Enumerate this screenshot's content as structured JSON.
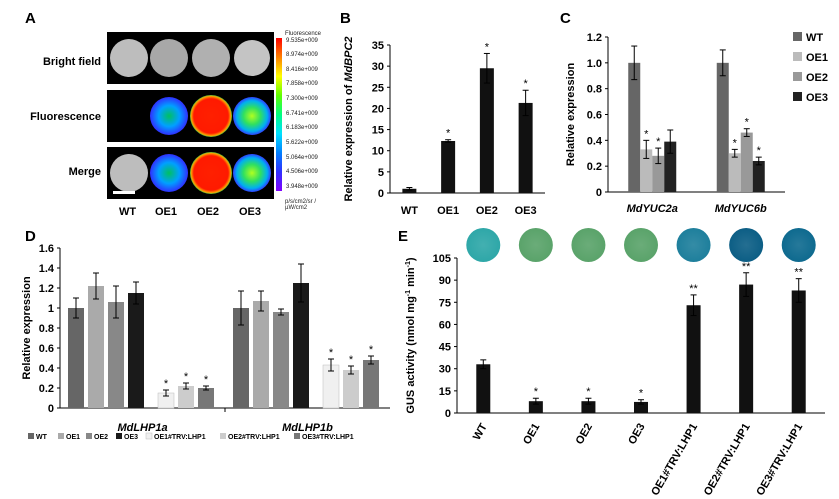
{
  "panels": {
    "A": {
      "letter": "A",
      "rows": [
        "Bright field",
        "Fluorescence",
        "Merge"
      ],
      "columns": [
        "WT",
        "OE1",
        "OE2",
        "OE3"
      ],
      "colorbar_title": "Fluorescence",
      "colorbar_ticks": [
        "9.535e+009",
        "8.974e+009",
        "8.416e+009",
        "7.858e+009",
        "7.300e+009",
        "6.741e+009",
        "6.183e+009",
        "5.622e+009",
        "5.064e+009",
        "4.506e+009",
        "3.948e+009"
      ],
      "colorbar_units": "p/s/cm2/sr / µW/cm2"
    },
    "B": {
      "letter": "B"
    },
    "C": {
      "letter": "C"
    },
    "D": {
      "letter": "D"
    },
    "E": {
      "letter": "E"
    }
  },
  "chart_data": [
    {
      "id": "B",
      "type": "bar",
      "categories": [
        "WT",
        "OE1",
        "OE2",
        "OE3"
      ],
      "values": [
        1.0,
        12.3,
        29.5,
        21.3
      ],
      "errors": [
        0.3,
        0.3,
        3.5,
        3.0
      ],
      "significance": [
        "",
        "*",
        "*",
        "*"
      ],
      "ylabel_prefix": "Relative expression of ",
      "ylabel_gene": "MdBPC2",
      "ylim": [
        0,
        35
      ],
      "yticks": [
        "0",
        "5",
        "10",
        "15",
        "20",
        "25",
        "30",
        "35"
      ],
      "bar_color": "#111111"
    },
    {
      "id": "C",
      "type": "bar",
      "groups": [
        "MdYUC2a",
        "MdYUC6b"
      ],
      "series": [
        {
          "name": "WT",
          "color": "#666666",
          "values": [
            1.0,
            1.0
          ],
          "errors": [
            0.13,
            0.1
          ],
          "significance": [
            "",
            ""
          ]
        },
        {
          "name": "OE1",
          "color": "#bbbbbb",
          "values": [
            0.33,
            0.3
          ],
          "errors": [
            0.07,
            0.03
          ],
          "significance": [
            "*",
            "*"
          ]
        },
        {
          "name": "OE2",
          "color": "#999999",
          "values": [
            0.28,
            0.46
          ],
          "errors": [
            0.06,
            0.03
          ],
          "significance": [
            "*",
            "*"
          ]
        },
        {
          "name": "OE3",
          "color": "#222222",
          "values": [
            0.39,
            0.24
          ],
          "errors": [
            0.09,
            0.03
          ],
          "significance": [
            "",
            "*"
          ]
        }
      ],
      "ylabel": "Relative expression",
      "ylim": [
        0,
        1.2
      ],
      "yticks": [
        "0",
        "0.2",
        "0.4",
        "0.6",
        "0.8",
        "1.0",
        "1.2"
      ]
    },
    {
      "id": "D",
      "type": "bar",
      "groups": [
        "MdLHP1a",
        "MdLHP1b"
      ],
      "series": [
        {
          "name": "WT",
          "color": "#666666",
          "values": [
            1.0,
            1.0
          ],
          "errors": [
            0.1,
            0.17
          ]
        },
        {
          "name": "OE1",
          "color": "#aaaaaa",
          "values": [
            1.22,
            1.07
          ],
          "errors": [
            0.13,
            0.1
          ]
        },
        {
          "name": "OE2",
          "color": "#888888",
          "values": [
            1.06,
            0.96
          ],
          "errors": [
            0.16,
            0.03
          ]
        },
        {
          "name": "OE3",
          "color": "#1a1a1a",
          "values": [
            1.15,
            1.25
          ],
          "errors": [
            0.11,
            0.19
          ]
        },
        {
          "name": "OE1#TRV:LHP1",
          "color": "#f0f0f0",
          "values": [
            0.15,
            0.43
          ],
          "errors": [
            0.03,
            0.06
          ],
          "significance": [
            "*",
            "*"
          ]
        },
        {
          "name": "OE2#TRV:LHP1",
          "color": "#cccccc",
          "values": [
            0.22,
            0.38
          ],
          "errors": [
            0.03,
            0.04
          ],
          "significance": [
            "*",
            "*"
          ]
        },
        {
          "name": "OE3#TRV:LHP1",
          "color": "#777777",
          "values": [
            0.2,
            0.48
          ],
          "errors": [
            0.02,
            0.04
          ],
          "significance": [
            "*",
            "*"
          ]
        }
      ],
      "ylabel": "Relative expression",
      "ylim": [
        0,
        1.6
      ],
      "yticks": [
        "0",
        "0.2",
        "0.4",
        "0.6",
        "0.8",
        "1",
        "1.2",
        "1.4",
        "1.6"
      ]
    },
    {
      "id": "E",
      "type": "bar",
      "categories": [
        "WT",
        "OE1",
        "OE2",
        "OE3",
        "OE1#TRV:LHP1",
        "OE2#TRV:LHP1",
        "OE3#TRV:LHP1"
      ],
      "values": [
        33,
        8,
        8,
        7.5,
        73,
        87,
        83
      ],
      "errors": [
        3,
        2,
        2,
        1.5,
        7,
        8,
        8
      ],
      "significance": [
        "",
        "*",
        "*",
        "*",
        "**",
        "**",
        "**"
      ],
      "ylabel_main": "GUS activity (nmol mg",
      "ylabel_sup1": "-1",
      "ylabel_mid": " min",
      "ylabel_sup2": "-1",
      "ylabel_end": ")",
      "ylim": [
        0,
        105
      ],
      "yticks": [
        "0",
        "15",
        "30",
        "45",
        "60",
        "75",
        "90",
        "105"
      ],
      "stain_colors": [
        "#2ea7a8",
        "#5aa36a",
        "#5aa36a",
        "#5aa36a",
        "#1e7f9c",
        "#0c5e85",
        "#0e6a8f"
      ],
      "bar_color": "#111111"
    }
  ]
}
